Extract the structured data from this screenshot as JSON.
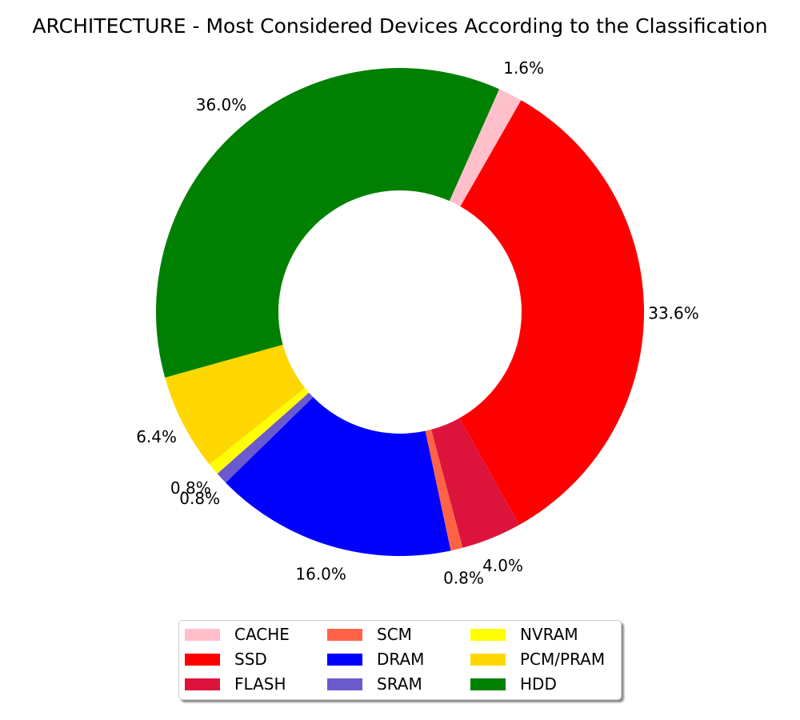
{
  "chart_data": {
    "type": "pie",
    "title": "ARCHITECTURE - Most Considered Devices According to the Classification",
    "donut": true,
    "start_angle_deg": 66,
    "direction": "clockwise",
    "legend_position": "bottom-center",
    "legend_columns": 3,
    "slices": [
      {
        "label": "CACHE",
        "value": 1.6,
        "pct_label": "1.6%",
        "color": "#FFC0CB"
      },
      {
        "label": "SSD",
        "value": 33.6,
        "pct_label": "33.6%",
        "color": "#FF0000"
      },
      {
        "label": "FLASH",
        "value": 4.0,
        "pct_label": "4.0%",
        "color": "#DC143C"
      },
      {
        "label": "SCM",
        "value": 0.8,
        "pct_label": "0.8%",
        "color": "#FF6347"
      },
      {
        "label": "DRAM",
        "value": 16.0,
        "pct_label": "16.0%",
        "color": "#0000FF"
      },
      {
        "label": "SRAM",
        "value": 0.8,
        "pct_label": "0.8%",
        "color": "#6A5ACD"
      },
      {
        "label": "NVRAM",
        "value": 0.8,
        "pct_label": "0.8%",
        "color": "#FFFF00"
      },
      {
        "label": "PCM/PRAM",
        "value": 6.4,
        "pct_label": "6.4%",
        "color": "#FFD700"
      },
      {
        "label": "HDD",
        "value": 36.0,
        "pct_label": "36.0%",
        "color": "#008000"
      }
    ]
  }
}
